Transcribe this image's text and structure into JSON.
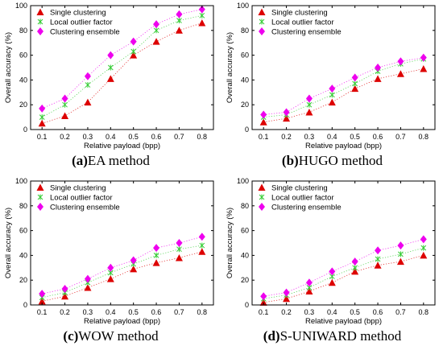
{
  "chart_data": [
    {
      "type": "scatter",
      "caption_letter": "(a)",
      "caption_text": "EA method",
      "xlabel": "Relative payload (bpp)",
      "ylabel": "Overall accuracy (%)",
      "x": [
        0.1,
        0.2,
        0.3,
        0.4,
        0.5,
        0.6,
        0.7,
        0.8
      ],
      "x_ticks": [
        "0.1",
        "0.2",
        "0.3",
        "0.4",
        "0.5",
        "0.6",
        "0.7",
        "0.8"
      ],
      "y_ticks": [
        "0",
        "20",
        "40",
        "60",
        "80",
        "100"
      ],
      "xlim": [
        0.05,
        0.85
      ],
      "ylim": [
        0,
        100
      ],
      "legend_position": "top-left",
      "series": [
        {
          "name": "Single clustering",
          "marker": "triangle",
          "color": "#dd0000",
          "values": [
            5,
            11,
            22,
            41,
            60,
            71,
            80,
            86
          ]
        },
        {
          "name": "Local outlier factor",
          "marker": "x",
          "color": "#33cc33",
          "values": [
            10,
            20,
            36,
            50,
            63,
            80,
            88,
            92
          ]
        },
        {
          "name": "Clustering ensemble",
          "marker": "diamond",
          "color": "#ee00ee",
          "values": [
            17,
            25,
            43,
            60,
            71,
            85,
            93,
            97
          ]
        }
      ]
    },
    {
      "type": "scatter",
      "caption_letter": "(b)",
      "caption_text": "HUGO method",
      "xlabel": "Relative payload (bpp)",
      "ylabel": "Overall accuracy (%)",
      "x": [
        0.1,
        0.2,
        0.3,
        0.4,
        0.5,
        0.6,
        0.7,
        0.8
      ],
      "x_ticks": [
        "0.1",
        "0.2",
        "0.3",
        "0.4",
        "0.5",
        "0.6",
        "0.7",
        "0.8"
      ],
      "y_ticks": [
        "0",
        "20",
        "40",
        "60",
        "80",
        "100"
      ],
      "xlim": [
        0.05,
        0.85
      ],
      "ylim": [
        0,
        100
      ],
      "legend_position": "top-left",
      "series": [
        {
          "name": "Single clustering",
          "marker": "triangle",
          "color": "#dd0000",
          "values": [
            6,
            9,
            14,
            22,
            33,
            41,
            45,
            49
          ]
        },
        {
          "name": "Local outlier factor",
          "marker": "x",
          "color": "#33cc33",
          "values": [
            10,
            12,
            20,
            28,
            37,
            47,
            53,
            57
          ]
        },
        {
          "name": "Clustering ensemble",
          "marker": "diamond",
          "color": "#ee00ee",
          "values": [
            12,
            14,
            25,
            33,
            42,
            50,
            55,
            58
          ]
        }
      ]
    },
    {
      "type": "scatter",
      "caption_letter": "(c)",
      "caption_text": "WOW method",
      "xlabel": "Relative payload (bpp)",
      "ylabel": "Overall accuracy (%)",
      "x": [
        0.1,
        0.2,
        0.3,
        0.4,
        0.5,
        0.6,
        0.7,
        0.8
      ],
      "x_ticks": [
        "0.1",
        "0.2",
        "0.3",
        "0.4",
        "0.5",
        "0.6",
        "0.7",
        "0.8"
      ],
      "y_ticks": [
        "0",
        "20",
        "40",
        "60",
        "80",
        "100"
      ],
      "xlim": [
        0.05,
        0.85
      ],
      "ylim": [
        0,
        100
      ],
      "legend_position": "top-left",
      "series": [
        {
          "name": "Single clustering",
          "marker": "triangle",
          "color": "#dd0000",
          "values": [
            3,
            7,
            14,
            21,
            29,
            34,
            38,
            43
          ]
        },
        {
          "name": "Local outlier factor",
          "marker": "x",
          "color": "#33cc33",
          "values": [
            6,
            10,
            18,
            26,
            33,
            40,
            45,
            48
          ]
        },
        {
          "name": "Clustering ensemble",
          "marker": "diamond",
          "color": "#ee00ee",
          "values": [
            9,
            13,
            21,
            30,
            36,
            46,
            50,
            55
          ]
        }
      ]
    },
    {
      "type": "scatter",
      "caption_letter": "(d)",
      "caption_text": "S-UNIWARD method",
      "xlabel": "Relative payload (bpp)",
      "ylabel": "Overall accuracy (%)",
      "x": [
        0.1,
        0.2,
        0.3,
        0.4,
        0.5,
        0.6,
        0.7,
        0.8
      ],
      "x_ticks": [
        "0.1",
        "0.2",
        "0.3",
        "0.4",
        "0.5",
        "0.6",
        "0.7",
        "0.8"
      ],
      "y_ticks": [
        "0",
        "20",
        "40",
        "60",
        "80",
        "100"
      ],
      "xlim": [
        0.05,
        0.85
      ],
      "ylim": [
        0,
        100
      ],
      "legend_position": "top-left",
      "series": [
        {
          "name": "Single clustering",
          "marker": "triangle",
          "color": "#dd0000",
          "values": [
            2,
            5,
            11,
            18,
            27,
            32,
            35,
            40
          ]
        },
        {
          "name": "Local outlier factor",
          "marker": "x",
          "color": "#33cc33",
          "values": [
            5,
            8,
            14,
            23,
            30,
            37,
            41,
            46
          ]
        },
        {
          "name": "Clustering ensemble",
          "marker": "diamond",
          "color": "#ee00ee",
          "values": [
            7,
            10,
            18,
            27,
            35,
            44,
            48,
            53
          ]
        }
      ]
    }
  ]
}
